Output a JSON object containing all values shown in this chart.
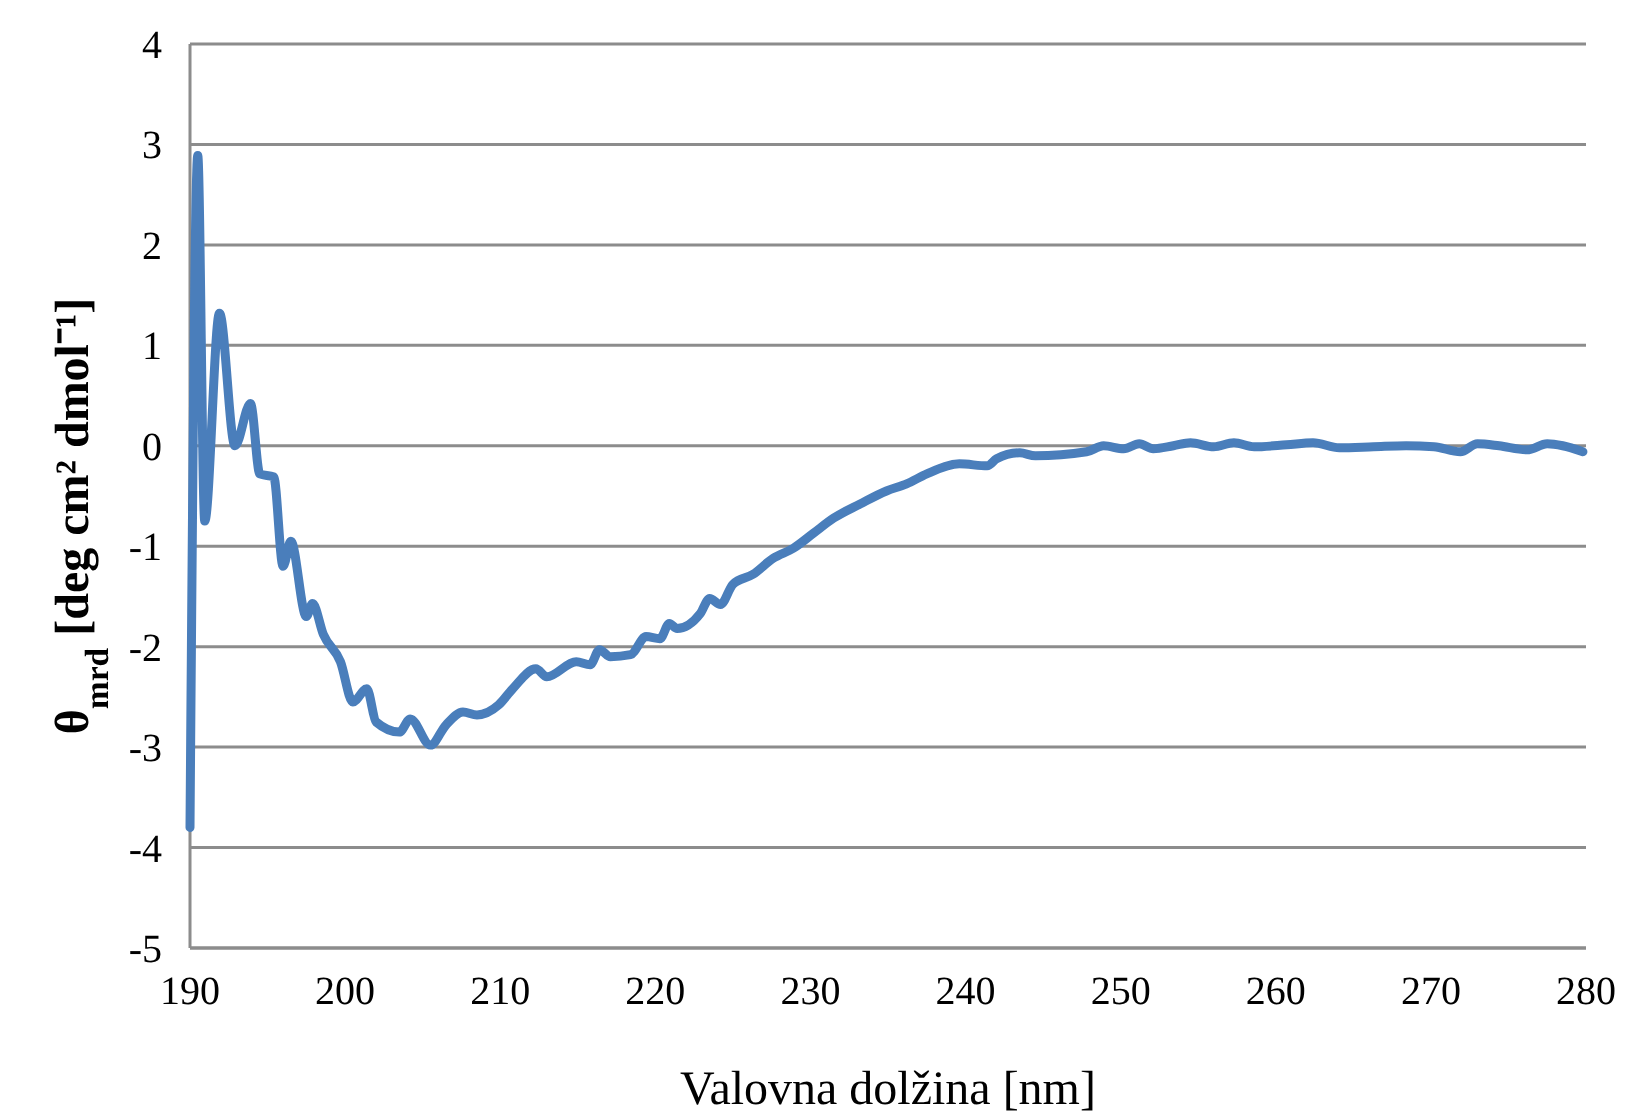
{
  "chart_data": {
    "type": "line",
    "xlabel": "Valovna dolžina [nm]",
    "ylabel": "θ$_{mrd}$ [deg cm² dmol⁻¹]",
    "xlim": [
      190,
      280
    ],
    "xticks": [
      190,
      200,
      210,
      220,
      230,
      240,
      250,
      260,
      270,
      280
    ],
    "ylim": [
      -5,
      4
    ],
    "yticks": [
      -5,
      -4,
      -3,
      -2,
      -1,
      0,
      1,
      2,
      3,
      4
    ],
    "grid": "y",
    "marker": "none",
    "line_style": "solid",
    "series": [
      {
        "color": "#4a7ebb",
        "x": [
          190,
          190.5,
          190.95,
          191.9,
          192.9,
          193.9,
          194.5,
          195.4,
          196.0,
          196.5,
          197.5,
          197.9,
          198.6,
          199.7,
          200.5,
          201.4,
          202.0,
          203.5,
          204.2,
          205.5,
          206.5,
          207.6,
          208.5,
          209.9,
          210.8,
          212.3,
          213,
          214.9,
          215.8,
          216.4,
          217.1,
          218.4,
          219.4,
          220.3,
          220.9,
          221.4,
          222.9,
          223.5,
          224.2,
          225.0,
          226.3,
          227.6,
          228.9,
          230.2,
          231.5,
          233.2,
          234.9,
          236.2,
          237.5,
          239.6,
          241.4,
          242,
          243.5,
          244.5,
          247.8,
          248.9,
          250.2,
          251.2,
          252.1,
          253.4,
          254.5,
          256,
          257.3,
          258.6,
          260.7,
          262.4,
          264.1,
          266.3,
          268.4,
          270.2,
          271.9,
          273,
          274.4,
          276.2,
          277.5,
          278.5,
          279.8
        ],
        "values": [
          -3.8,
          2.89,
          -0.75,
          1.32,
          0,
          0.42,
          -0.28,
          -0.31,
          -1.2,
          -0.95,
          -1.7,
          -1.57,
          -1.88,
          -2.15,
          -2.55,
          -2.42,
          -2.75,
          -2.85,
          -2.72,
          -2.98,
          -2.78,
          -2.65,
          -2.68,
          -2.58,
          -2.42,
          -2.22,
          -2.3,
          -2.15,
          -2.18,
          -2.03,
          -2.1,
          -2.08,
          -1.9,
          -1.92,
          -1.77,
          -1.82,
          -1.67,
          -1.52,
          -1.58,
          -1.38,
          -1.28,
          -1.12,
          -1.02,
          -0.87,
          -0.72,
          -0.58,
          -0.45,
          -0.38,
          -0.28,
          -0.18,
          -0.2,
          -0.13,
          -0.07,
          -0.1,
          -0.06,
          0.0,
          -0.03,
          0.02,
          -0.03,
          0,
          0.03,
          -0.01,
          0.03,
          -0.01,
          0.01,
          0.03,
          -0.02,
          -0.01,
          0,
          -0.01,
          -0.06,
          0.02,
          0,
          -0.04,
          0.02,
          0,
          -0.06
        ]
      }
    ]
  }
}
